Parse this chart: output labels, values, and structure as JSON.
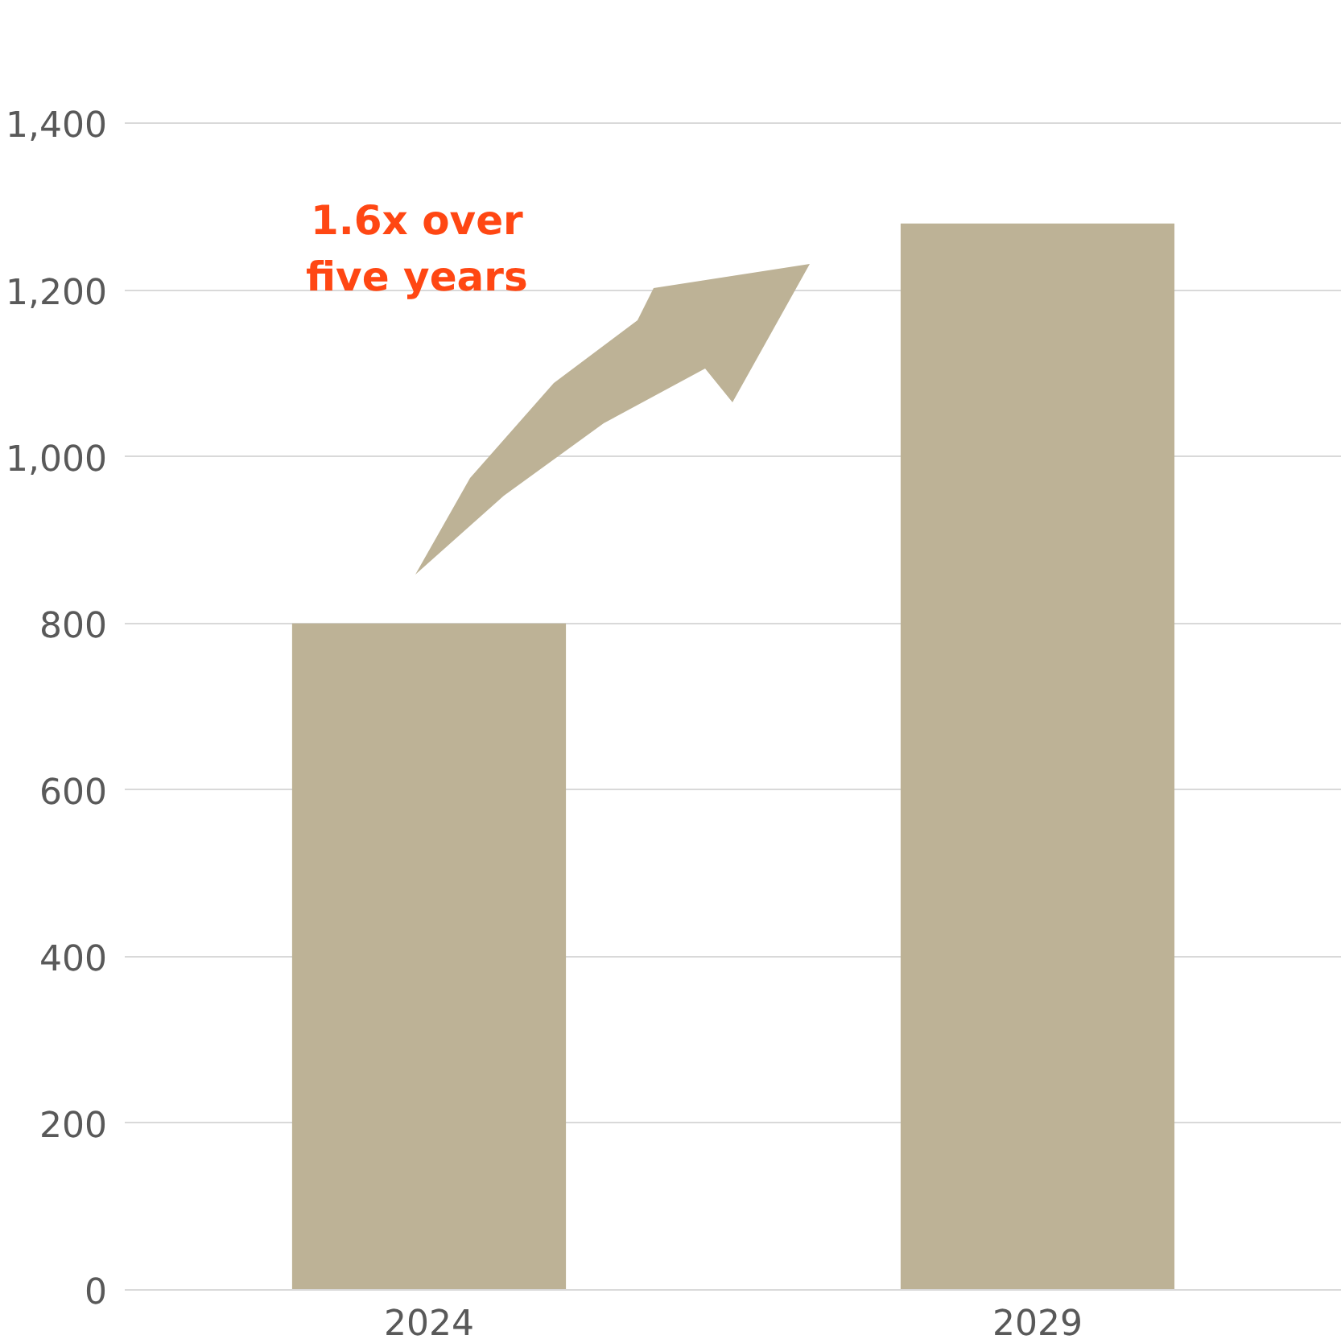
{
  "chart_data": {
    "type": "bar",
    "categories": [
      "2024",
      "2029"
    ],
    "values": [
      800,
      1280
    ],
    "color": "#bdb296",
    "ylim": [
      0,
      1400
    ],
    "yticks": [
      0,
      {
        "value": 200,
        "label": "200"
      },
      {
        "value": 400,
        "label": "400"
      },
      {
        "value": 600,
        "label": "600"
      },
      {
        "value": 800,
        "label": "800"
      },
      {
        "value": 1000,
        "label": "1,000"
      },
      {
        "value": 1200,
        "label": "1,200"
      },
      {
        "value": 1400,
        "label": "1,400"
      }
    ],
    "grid": "y",
    "annotations": [
      "1.6x over\nfive years"
    ]
  }
}
